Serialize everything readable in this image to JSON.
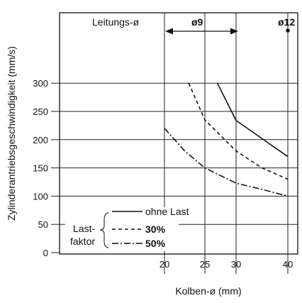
{
  "chart_data": {
    "type": "line",
    "xlabel": "Kolben-ø (mm)",
    "ylabel": "Zylinderantriebsgeschwindigkeit (mm/s)",
    "x_ticks": [
      "20",
      "25",
      "30",
      "40"
    ],
    "x_tick_values": [
      20,
      25,
      30,
      40
    ],
    "y_ticks": [
      "0",
      "50",
      "100",
      "150",
      "200",
      "250",
      "300"
    ],
    "y_tick_values": [
      0,
      50,
      100,
      150,
      200,
      250,
      300
    ],
    "xlim": [
      20,
      40
    ],
    "ylim": [
      0,
      300
    ],
    "grid": true,
    "series": [
      {
        "name": "ohne Last",
        "style": "solid",
        "points": [
          [
            27,
            300
          ],
          [
            30,
            234
          ],
          [
            40,
            170
          ]
        ]
      },
      {
        "name": "30%",
        "style": "dashed",
        "points": [
          [
            23,
            300
          ],
          [
            25,
            235
          ],
          [
            30,
            180
          ],
          [
            35,
            150
          ],
          [
            40,
            130
          ]
        ]
      },
      {
        "name": "50%",
        "style": "dashdot",
        "points": [
          [
            20,
            220
          ],
          [
            22.5,
            180
          ],
          [
            25,
            150
          ],
          [
            30,
            123
          ],
          [
            35,
            112
          ],
          [
            40,
            100
          ]
        ]
      }
    ],
    "header": {
      "label": "Leitungs-ø",
      "d9": "ø9",
      "d12": "ø12"
    },
    "legend": {
      "group_label_line1": "Last-",
      "group_label_line2": "faktor",
      "placement": "bottom-left"
    }
  }
}
